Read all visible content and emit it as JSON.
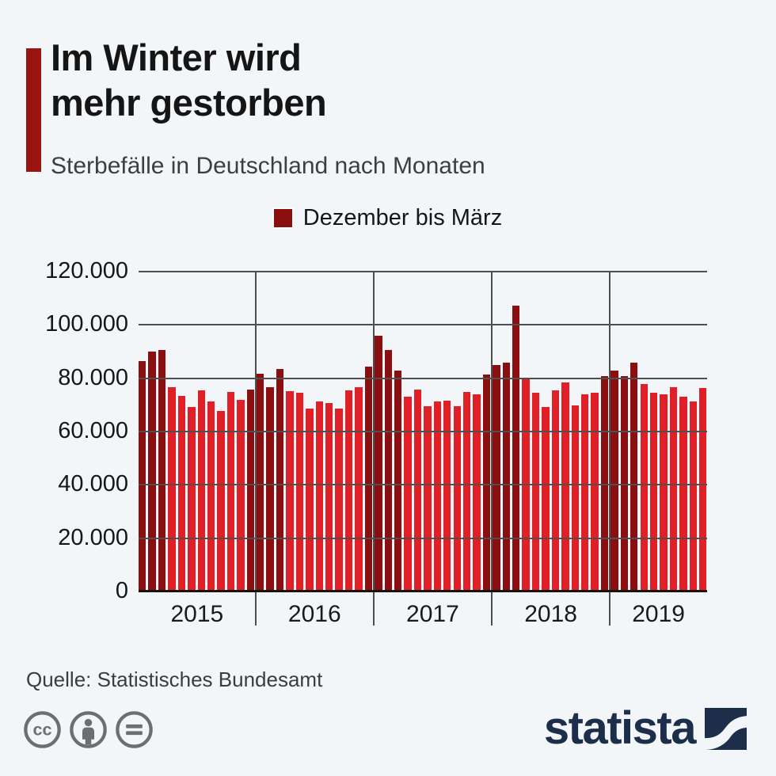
{
  "page": {
    "background": "#f3f6f9"
  },
  "header": {
    "accent_color": "#9b1412",
    "title_line1": "Im Winter wird",
    "title_line2": "mehr gestorben",
    "subtitle": "Sterbefälle in Deutschland nach Monaten"
  },
  "legend": {
    "label": "Dezember bis März",
    "swatch_color": "#8b0e0e"
  },
  "chart_data": {
    "type": "bar",
    "title": "Sterbefälle in Deutschland nach Monaten",
    "xlabel": "",
    "ylabel": "",
    "ylim": [
      0,
      120000
    ],
    "grid": "horizontal",
    "legend_entries": [
      {
        "label": "Dezember bis März",
        "color": "#8b0e0e"
      }
    ],
    "yticks": [
      120000,
      100000,
      80000,
      60000,
      40000,
      20000,
      0
    ],
    "ytick_labels": [
      "120.000",
      "100.000",
      "80.000",
      "60.000",
      "40.000",
      "20.000",
      "0"
    ],
    "bar_colors": {
      "winter_dec_to_mar": "#8b0e10",
      "other_months": "#e01f26"
    },
    "winter_month_indices": [
      0,
      1,
      2,
      11
    ],
    "groups": [
      {
        "year": "2015",
        "values": [
          86500,
          90000,
          90600,
          76600,
          73400,
          69100,
          75500,
          71400,
          67600,
          74800,
          71900,
          75800
        ]
      },
      {
        "year": "2016",
        "values": [
          81600,
          76600,
          83600,
          75300,
          74500,
          68600,
          71400,
          70800,
          68700,
          75400,
          76700,
          84300
        ]
      },
      {
        "year": "2017",
        "values": [
          96000,
          90700,
          82900,
          73200,
          75700,
          69600,
          71400,
          71500,
          69400,
          75000,
          74100,
          81400
        ]
      },
      {
        "year": "2018",
        "values": [
          85000,
          85800,
          107100,
          79500,
          74600,
          69300,
          75600,
          78400,
          69700,
          74000,
          74700,
          80800
        ]
      },
      {
        "year": "2019",
        "values": [
          82900,
          80900,
          86000,
          77900,
          74700,
          74100,
          76600,
          73200,
          71200,
          76500
        ]
      }
    ]
  },
  "footer": {
    "source": "Quelle: Statistisches Bundesamt",
    "license_icons": [
      "cc-icon",
      "attribution-icon",
      "no-derivatives-icon"
    ],
    "icon_color": "#6b6f71",
    "logo_text": "statista",
    "logo_color": "#1c2e4a"
  }
}
